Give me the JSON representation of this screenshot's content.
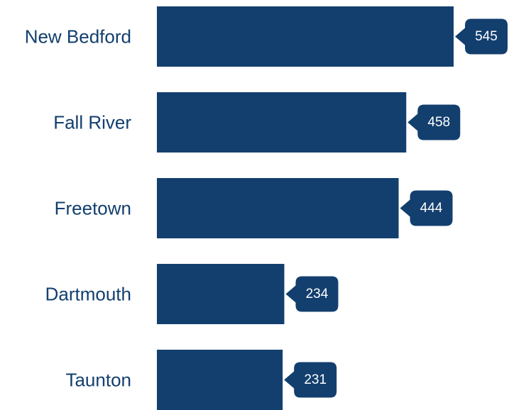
{
  "chart_data": {
    "type": "bar",
    "orientation": "horizontal",
    "categories": [
      "New Bedford",
      "Fall River",
      "Freetown",
      "Dartmouth",
      "Taunton"
    ],
    "values": [
      545,
      458,
      444,
      234,
      231
    ],
    "color": "#133f6e",
    "xlim": [
      0,
      650
    ]
  }
}
